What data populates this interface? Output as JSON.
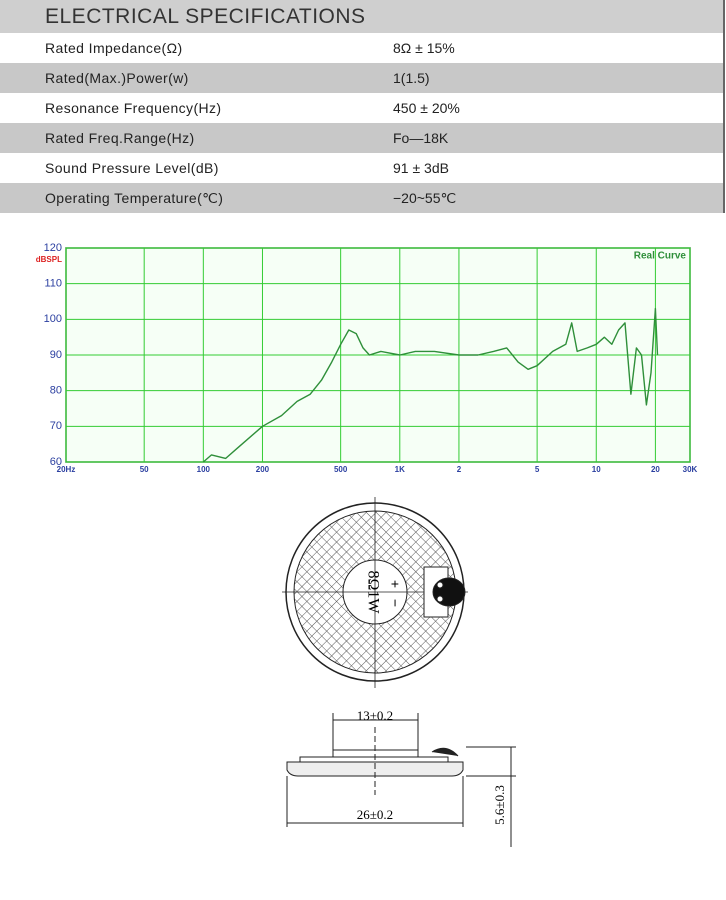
{
  "header": {
    "title": "ELECTRICAL SPECIFICATIONS"
  },
  "table": {
    "rows": [
      [
        "Rated  Impedance(Ω)",
        "8Ω ± 15%"
      ],
      [
        "Rated(Max.)Power(w)",
        "1(1.5)"
      ],
      [
        "Resonance  Frequency(Hz)",
        "450 ± 20%"
      ],
      [
        "Rated  Freq.Range(Hz)",
        "Fo—18K"
      ],
      [
        "Sound  Pressure  Level(dB)",
        "91 ± 3dB"
      ],
      [
        "Operating  Temperature(℃)",
        "−20~55℃"
      ]
    ]
  },
  "chart_data": {
    "type": "line",
    "y_label": "dBSPL",
    "log_x": true,
    "grid": true,
    "xlim": [
      20,
      30000
    ],
    "xticks": [
      {
        "value": 20,
        "label": "20Hz"
      },
      50,
      100,
      200,
      500,
      {
        "value": 1000,
        "label": "1K"
      },
      {
        "value": 2000,
        "label": "2"
      },
      {
        "value": 5000,
        "label": "5"
      },
      {
        "value": 10000,
        "label": "10"
      },
      {
        "value": 20000,
        "label": "20"
      },
      {
        "value": 30000,
        "label": "30K"
      }
    ],
    "ylim": [
      60,
      120
    ],
    "yticks": [
      60,
      70,
      80,
      90,
      100,
      110,
      120
    ],
    "x": [
      100,
      110,
      130,
      150,
      200,
      250,
      300,
      350,
      400,
      450,
      500,
      550,
      600,
      650,
      700,
      800,
      1000,
      1200,
      1500,
      2000,
      2500,
      3000,
      3500,
      4000,
      4500,
      5000,
      6000,
      7000,
      7500,
      8000,
      9000,
      10000,
      11000,
      12000,
      13000,
      14000,
      15000,
      16000,
      17000,
      18000,
      19000,
      20000,
      20500
    ],
    "series": [
      {
        "name": "Real Curve",
        "color": "#2f8f3a",
        "values": [
          60,
          62,
          61,
          64,
          70,
          73,
          77,
          79,
          83,
          88,
          93,
          97,
          96,
          92,
          90,
          91,
          90,
          91,
          91,
          90,
          90,
          91,
          92,
          88,
          86,
          87,
          91,
          93,
          99,
          91,
          92,
          93,
          95,
          93,
          97,
          99,
          79,
          92,
          90,
          76,
          85,
          103,
          90
        ]
      }
    ]
  },
  "drawing": {
    "rating": "8Ω1W",
    "plus": "+",
    "minus": "−",
    "height": "13±0.2",
    "diameter": "26±0.2",
    "depth": "5.6±0.3"
  }
}
